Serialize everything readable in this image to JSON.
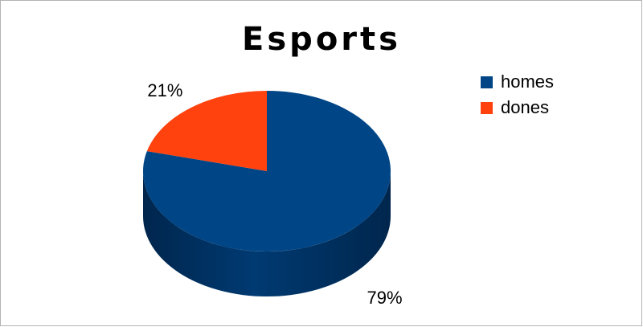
{
  "chart_data": {
    "type": "pie",
    "title": "Esports",
    "slices": [
      {
        "label": "homes",
        "value": 79,
        "display": "79%",
        "color": "#004586"
      },
      {
        "label": "dones",
        "value": 21,
        "display": "21%",
        "color": "#ff420e"
      }
    ],
    "legend_position": "right",
    "style": "3d"
  }
}
